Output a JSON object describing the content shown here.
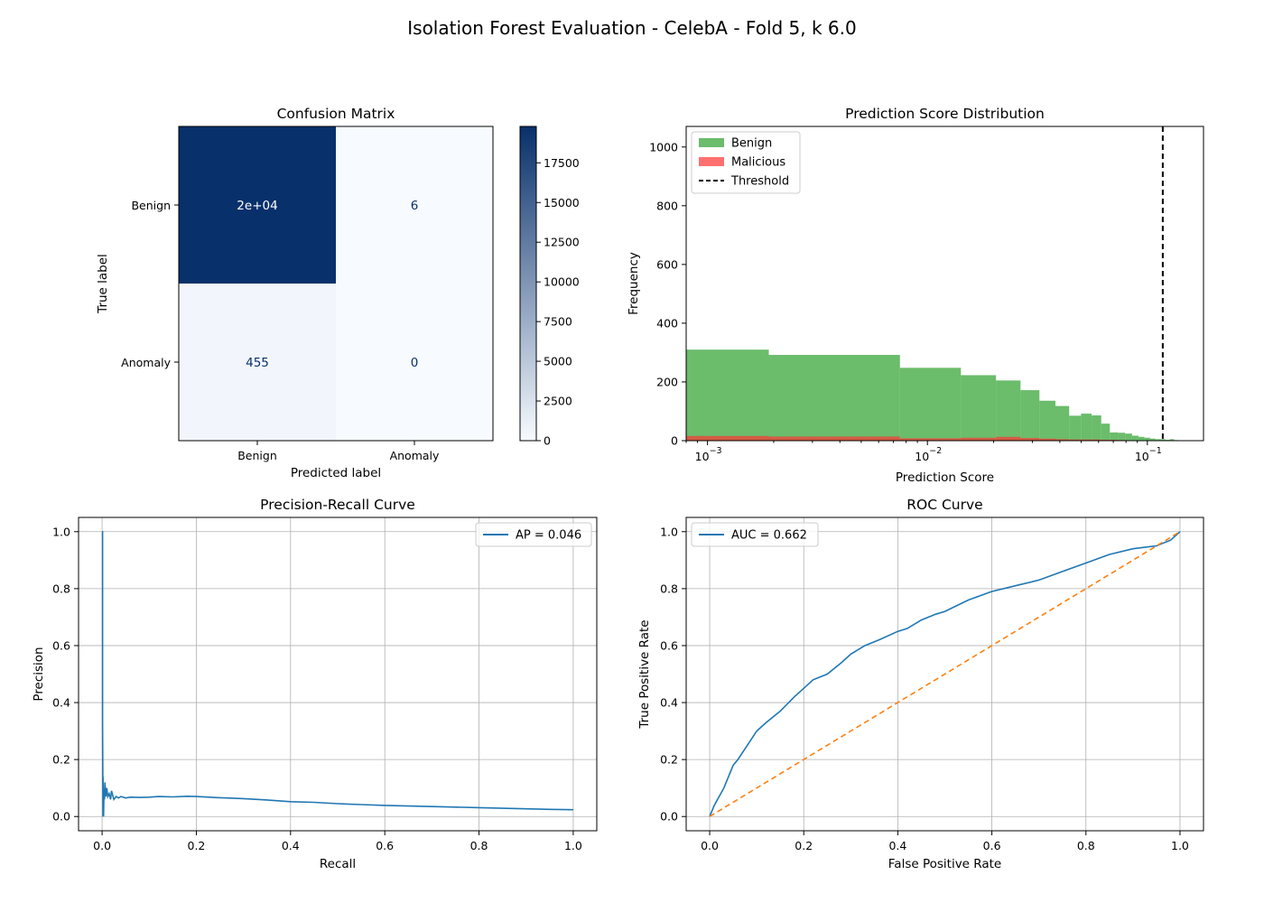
{
  "title": "Isolation Forest Evaluation - CelebA - Fold 5, k 6.0",
  "chart_data": [
    {
      "type": "heatmap",
      "id": "cm",
      "title": "Confusion Matrix",
      "xlabel": "Predicted label",
      "ylabel": "True label",
      "x_categories": [
        "Benign",
        "Anomaly"
      ],
      "y_categories": [
        "Benign",
        "Anomaly"
      ],
      "values": [
        [
          19794,
          6
        ],
        [
          455,
          0
        ]
      ],
      "cell_labels": [
        [
          "2e+04",
          "6"
        ],
        [
          "455",
          "0"
        ]
      ],
      "colorbar": {
        "min": 0,
        "max": 19794,
        "ticks": [
          "0",
          "2500",
          "5000",
          "7500",
          "10000",
          "12500",
          "15000",
          "17500"
        ]
      },
      "colors": {
        "low": "#f7fbff",
        "high": "#08306b",
        "light_text": "#ffffff",
        "dark_text": "#08306b"
      }
    },
    {
      "type": "bar",
      "id": "dist",
      "title": "Prediction Score Distribution",
      "xlabel": "Prediction Score",
      "ylabel": "Frequency",
      "xscale": "log",
      "xlim": [
        0.0008,
        0.18
      ],
      "ylim": [
        0,
        1070
      ],
      "x_ticks": [
        {
          "value": 0.001,
          "label": "10",
          "exp": "−3"
        },
        {
          "value": 0.01,
          "label": "10",
          "exp": "−2"
        },
        {
          "value": 0.1,
          "label": "10",
          "exp": "−1"
        }
      ],
      "y_ticks": [
        "0",
        "200",
        "400",
        "600",
        "800",
        "1000"
      ],
      "series": [
        {
          "name": "Benign",
          "color": "#2ca02c",
          "bins": [
            [
              0.0008,
              0.0019,
              310
            ],
            [
              0.0019,
              0.0075,
              292
            ],
            [
              0.0075,
              0.0142,
              248
            ],
            [
              0.0142,
              0.0205,
              223
            ],
            [
              0.0205,
              0.0265,
              205
            ],
            [
              0.0265,
              0.0323,
              172
            ],
            [
              0.0323,
              0.0382,
              136
            ],
            [
              0.0382,
              0.0441,
              118
            ],
            [
              0.0441,
              0.0499,
              85
            ],
            [
              0.0499,
              0.0558,
              92
            ],
            [
              0.0558,
              0.0617,
              86
            ],
            [
              0.0617,
              0.0675,
              58
            ],
            [
              0.0675,
              0.0734,
              28
            ],
            [
              0.0734,
              0.0793,
              27
            ],
            [
              0.0793,
              0.0852,
              24
            ],
            [
              0.0852,
              0.0911,
              17
            ],
            [
              0.0911,
              0.097,
              13
            ],
            [
              0.097,
              0.1029,
              10
            ],
            [
              0.1029,
              0.1088,
              7
            ],
            [
              0.1088,
              0.1147,
              5
            ],
            [
              0.1147,
              0.1206,
              5
            ],
            [
              0.1206,
              0.1265,
              3
            ],
            [
              0.1265,
              0.1324,
              5
            ],
            [
              0.1324,
              0.1383,
              2
            ]
          ]
        },
        {
          "name": "Malicious",
          "color": "#ff3333",
          "bins": [
            [
              0.0008,
              0.0019,
              16
            ],
            [
              0.0019,
              0.0075,
              14
            ],
            [
              0.0075,
              0.0142,
              8
            ],
            [
              0.0142,
              0.0205,
              10
            ],
            [
              0.0205,
              0.0265,
              13
            ],
            [
              0.0265,
              0.0323,
              9
            ],
            [
              0.0323,
              0.0382,
              7
            ],
            [
              0.0382,
              0.0441,
              5
            ],
            [
              0.0441,
              0.0499,
              4
            ],
            [
              0.0499,
              0.0558,
              4
            ],
            [
              0.0558,
              0.0617,
              4
            ],
            [
              0.0617,
              0.0675,
              3
            ],
            [
              0.0675,
              0.0734,
              3
            ],
            [
              0.0734,
              0.0793,
              2
            ]
          ]
        }
      ],
      "threshold": {
        "name": "Threshold",
        "value": 0.1175,
        "color": "#000000"
      },
      "legend_position": "top-left"
    },
    {
      "type": "line",
      "id": "pr",
      "title": "Precision-Recall Curve",
      "xlabel": "Recall",
      "ylabel": "Precision",
      "xlim": [
        -0.05,
        1.05
      ],
      "ylim": [
        -0.05,
        1.05
      ],
      "x_ticks": [
        "0.0",
        "0.2",
        "0.4",
        "0.6",
        "0.8",
        "1.0"
      ],
      "y_ticks": [
        "0.0",
        "0.2",
        "0.4",
        "0.6",
        "0.8",
        "1.0"
      ],
      "grid": true,
      "legend_position": "top-right",
      "series": [
        {
          "name": "AP = 0.046",
          "color": "#1f77b4",
          "x": [
            0,
            0.001,
            0.001,
            0.002,
            0.002,
            0.003,
            0.004,
            0.005,
            0.006,
            0.008,
            0.01,
            0.012,
            0.015,
            0.018,
            0.02,
            0.025,
            0.03,
            0.035,
            0.04,
            0.05,
            0.06,
            0.08,
            0.1,
            0.12,
            0.15,
            0.18,
            0.2,
            0.25,
            0.3,
            0.35,
            0.4,
            0.45,
            0.5,
            0.55,
            0.6,
            0.65,
            0.7,
            0.75,
            0.8,
            0.85,
            0.9,
            0.95,
            1.0
          ],
          "y": [
            1.0,
            1.0,
            0.33,
            0.0,
            0.14,
            0.0,
            0.1,
            0.06,
            0.12,
            0.07,
            0.1,
            0.07,
            0.08,
            0.06,
            0.09,
            0.06,
            0.07,
            0.065,
            0.07,
            0.065,
            0.068,
            0.067,
            0.068,
            0.07,
            0.069,
            0.071,
            0.07,
            0.066,
            0.063,
            0.058,
            0.052,
            0.05,
            0.045,
            0.042,
            0.039,
            0.037,
            0.035,
            0.033,
            0.031,
            0.029,
            0.027,
            0.025,
            0.024
          ]
        }
      ]
    },
    {
      "type": "line",
      "id": "roc",
      "title": "ROC Curve",
      "xlabel": "False Positive Rate",
      "ylabel": "True Positive Rate",
      "xlim": [
        -0.05,
        1.05
      ],
      "ylim": [
        -0.05,
        1.05
      ],
      "x_ticks": [
        "0.0",
        "0.2",
        "0.4",
        "0.6",
        "0.8",
        "1.0"
      ],
      "y_ticks": [
        "0.0",
        "0.2",
        "0.4",
        "0.6",
        "0.8",
        "1.0"
      ],
      "grid": true,
      "legend_position": "top-left",
      "series": [
        {
          "name": "AUC = 0.662",
          "color": "#1f77b4",
          "x": [
            0,
            0.005,
            0.01,
            0.02,
            0.03,
            0.04,
            0.05,
            0.06,
            0.08,
            0.1,
            0.12,
            0.15,
            0.18,
            0.2,
            0.22,
            0.25,
            0.28,
            0.3,
            0.33,
            0.36,
            0.4,
            0.42,
            0.45,
            0.48,
            0.5,
            0.55,
            0.6,
            0.65,
            0.7,
            0.75,
            0.8,
            0.85,
            0.9,
            0.95,
            0.98,
            1.0
          ],
          "y": [
            0,
            0.02,
            0.04,
            0.07,
            0.1,
            0.14,
            0.18,
            0.2,
            0.25,
            0.3,
            0.33,
            0.37,
            0.42,
            0.45,
            0.48,
            0.5,
            0.54,
            0.57,
            0.6,
            0.62,
            0.65,
            0.66,
            0.69,
            0.71,
            0.72,
            0.76,
            0.79,
            0.81,
            0.83,
            0.86,
            0.89,
            0.92,
            0.94,
            0.95,
            0.97,
            1.0
          ]
        },
        {
          "name": "",
          "color": "#ff7f0e",
          "dashed": true,
          "x": [
            0,
            1
          ],
          "y": [
            0,
            1
          ]
        }
      ]
    }
  ]
}
